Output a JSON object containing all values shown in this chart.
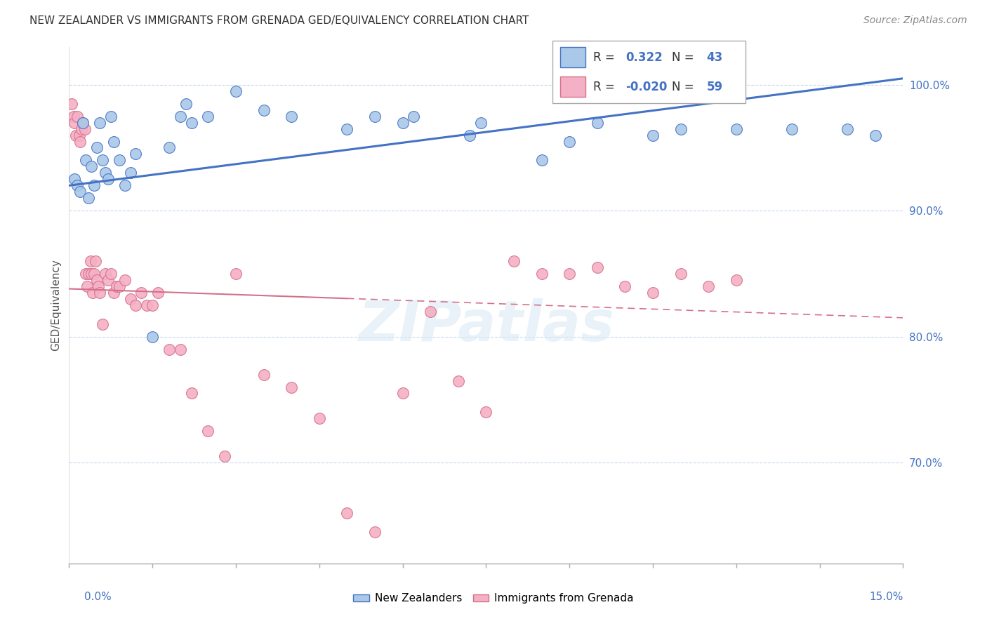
{
  "title": "NEW ZEALANDER VS IMMIGRANTS FROM GRENADA GED/EQUIVALENCY CORRELATION CHART",
  "source": "Source: ZipAtlas.com",
  "ylabel": "GED/Equivalency",
  "xmin": 0.0,
  "xmax": 15.0,
  "ymin": 62.0,
  "ymax": 103.0,
  "yticks": [
    70.0,
    80.0,
    90.0,
    100.0
  ],
  "blue_R": 0.322,
  "blue_N": 43,
  "pink_R": -0.02,
  "pink_N": 59,
  "blue_color": "#aac8e8",
  "blue_line_color": "#4472c4",
  "pink_color": "#f4b0c4",
  "pink_line_color": "#d4708a",
  "blue_trend_x": [
    0.0,
    15.0
  ],
  "blue_trend_y": [
    92.0,
    100.5
  ],
  "pink_trend_x": [
    0.0,
    15.0
  ],
  "pink_trend_y": [
    83.8,
    81.5
  ],
  "blue_points_x": [
    0.1,
    0.15,
    0.2,
    0.25,
    0.3,
    0.35,
    0.4,
    0.45,
    0.5,
    0.55,
    0.6,
    0.65,
    0.7,
    0.75,
    0.8,
    0.9,
    1.0,
    1.1,
    1.2,
    1.5,
    1.8,
    2.0,
    2.1,
    2.2,
    2.5,
    3.0,
    3.5,
    4.0,
    5.0,
    5.5,
    6.0,
    6.2,
    7.2,
    7.4,
    8.5,
    9.0,
    9.5,
    10.5,
    11.0,
    12.0,
    13.0,
    14.0,
    14.5
  ],
  "blue_points_y": [
    92.5,
    92.0,
    91.5,
    97.0,
    94.0,
    91.0,
    93.5,
    92.0,
    95.0,
    97.0,
    94.0,
    93.0,
    92.5,
    97.5,
    95.5,
    94.0,
    92.0,
    93.0,
    94.5,
    80.0,
    95.0,
    97.5,
    98.5,
    97.0,
    97.5,
    99.5,
    98.0,
    97.5,
    96.5,
    97.5,
    97.0,
    97.5,
    96.0,
    97.0,
    94.0,
    95.5,
    97.0,
    96.0,
    96.5,
    96.5,
    96.5,
    96.5,
    96.0
  ],
  "pink_points_x": [
    0.05,
    0.08,
    0.1,
    0.12,
    0.15,
    0.18,
    0.2,
    0.22,
    0.25,
    0.28,
    0.3,
    0.32,
    0.35,
    0.38,
    0.4,
    0.42,
    0.45,
    0.48,
    0.5,
    0.52,
    0.55,
    0.6,
    0.65,
    0.7,
    0.75,
    0.8,
    0.85,
    0.9,
    1.0,
    1.1,
    1.2,
    1.3,
    1.4,
    1.5,
    1.6,
    1.8,
    2.0,
    2.2,
    2.5,
    2.8,
    3.0,
    3.5,
    4.0,
    4.5,
    5.0,
    5.5,
    6.0,
    6.5,
    7.0,
    7.5,
    8.0,
    8.5,
    9.0,
    9.5,
    10.0,
    10.5,
    11.0,
    11.5,
    12.0
  ],
  "pink_points_y": [
    98.5,
    97.5,
    97.0,
    96.0,
    97.5,
    96.0,
    95.5,
    96.5,
    97.0,
    96.5,
    85.0,
    84.0,
    85.0,
    86.0,
    85.0,
    83.5,
    85.0,
    86.0,
    84.5,
    84.0,
    83.5,
    81.0,
    85.0,
    84.5,
    85.0,
    83.5,
    84.0,
    84.0,
    84.5,
    83.0,
    82.5,
    83.5,
    82.5,
    82.5,
    83.5,
    79.0,
    79.0,
    75.5,
    72.5,
    70.5,
    85.0,
    77.0,
    76.0,
    73.5,
    66.0,
    64.5,
    75.5,
    82.0,
    76.5,
    74.0,
    86.0,
    85.0,
    85.0,
    85.5,
    84.0,
    83.5,
    85.0,
    84.0,
    84.5
  ]
}
